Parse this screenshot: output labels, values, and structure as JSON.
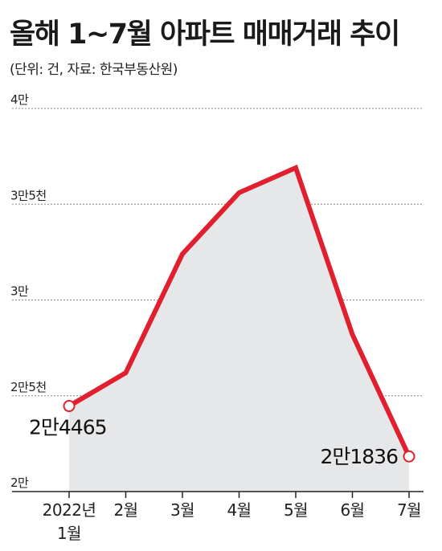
{
  "title": "올해 1~7월 아파트 매매거래 추이",
  "subtitle": "(단위: 건, 자료: 한국부동산원)",
  "chart_data": {
    "type": "area",
    "title": "올해 1~7월 아파트 매매거래 추이",
    "subtitle": "(단위: 건, 자료: 한국부동산원)",
    "xlabel": "",
    "ylabel": "",
    "categories": [
      "2022년 1월",
      "2월",
      "3월",
      "4월",
      "5월",
      "6월",
      "7월"
    ],
    "x_tick_labels": [
      [
        "2022년",
        "1월"
      ],
      [
        "2월"
      ],
      [
        "3월"
      ],
      [
        "4월"
      ],
      [
        "5월"
      ],
      [
        "6월"
      ],
      [
        "7월"
      ]
    ],
    "values": [
      24465,
      26200,
      32400,
      35600,
      36900,
      28200,
      21836
    ],
    "ylim": [
      20000,
      40000
    ],
    "y_ticks": [
      {
        "value": 40000,
        "label": "4만"
      },
      {
        "value": 35000,
        "label": "3만5천"
      },
      {
        "value": 30000,
        "label": "3만"
      },
      {
        "value": 25000,
        "label": "2만5천"
      },
      {
        "value": 20000,
        "label": "2만"
      }
    ],
    "data_labels": [
      {
        "index": 0,
        "text": "2만4465"
      },
      {
        "index": 6,
        "text": "2만1836"
      }
    ],
    "grid": true,
    "line_color": "#e0202e",
    "fill_color": "#e6e7e9"
  }
}
